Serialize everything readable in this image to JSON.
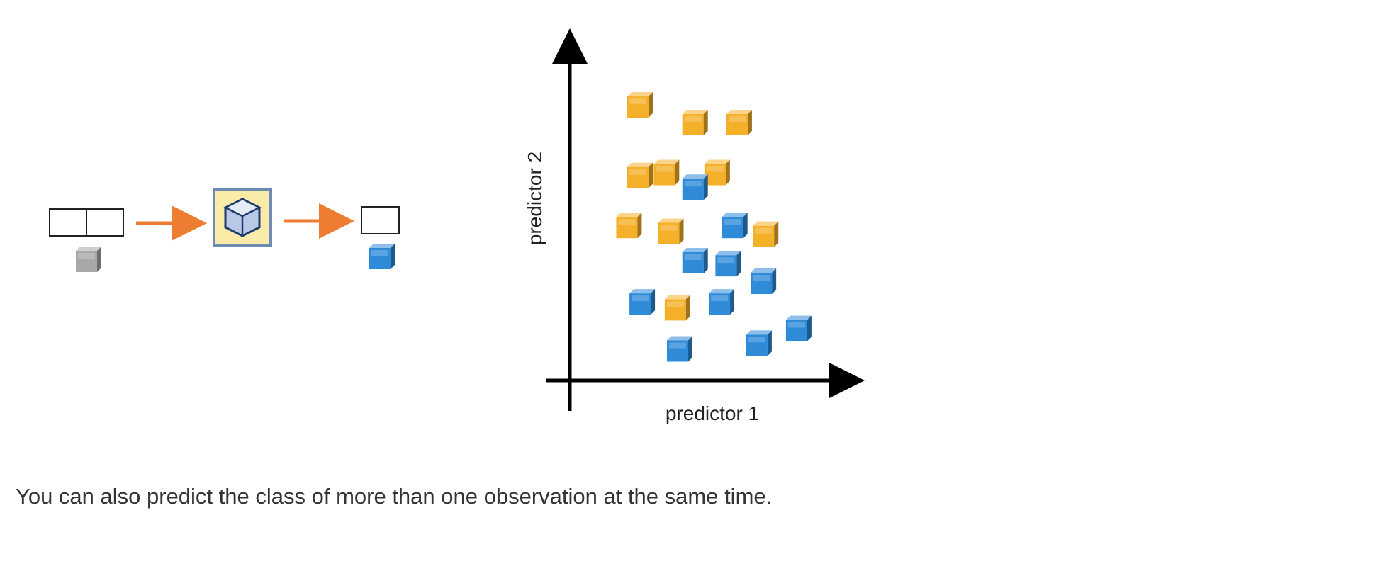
{
  "caption": "You can also predict the class of more than one observation at the same time.",
  "colors": {
    "yellow_class": "#F5B02A",
    "blue_class": "#2F8BD8",
    "unknown_class": "#A8A8A8",
    "arrow": "#ED7D31",
    "model_box_fill": "#FBEBA8",
    "model_box_border": "#6D8BB5",
    "axis": "#000000"
  },
  "pipeline": {
    "input_icon": "two-cell-input-table",
    "input_cube": "gray-cube",
    "model_icon": "model-cube-icon",
    "output_icon": "single-cell-output-table",
    "output_cube": "blue-cube"
  },
  "chart_data": {
    "type": "scatter",
    "xlabel": "predictor 1",
    "ylabel": "predictor 2",
    "xlim": [
      0,
      10
    ],
    "ylim": [
      0,
      10
    ],
    "grid": false,
    "series": [
      {
        "class": "yellow",
        "points": [
          [
            1.8,
            9.3
          ],
          [
            4.3,
            8.7
          ],
          [
            6.3,
            8.7
          ],
          [
            1.8,
            6.9
          ],
          [
            3.0,
            7.0
          ],
          [
            5.3,
            7.0
          ],
          [
            1.3,
            5.2
          ],
          [
            3.2,
            5.0
          ],
          [
            7.5,
            4.9
          ],
          [
            3.5,
            2.4
          ]
        ]
      },
      {
        "class": "blue",
        "points": [
          [
            4.3,
            6.5
          ],
          [
            6.1,
            5.2
          ],
          [
            4.3,
            4.0
          ],
          [
            5.8,
            3.9
          ],
          [
            7.4,
            3.3
          ],
          [
            1.9,
            2.6
          ],
          [
            5.5,
            2.6
          ],
          [
            3.6,
            1.0
          ],
          [
            7.2,
            1.2
          ],
          [
            9.0,
            1.7
          ]
        ]
      }
    ]
  }
}
